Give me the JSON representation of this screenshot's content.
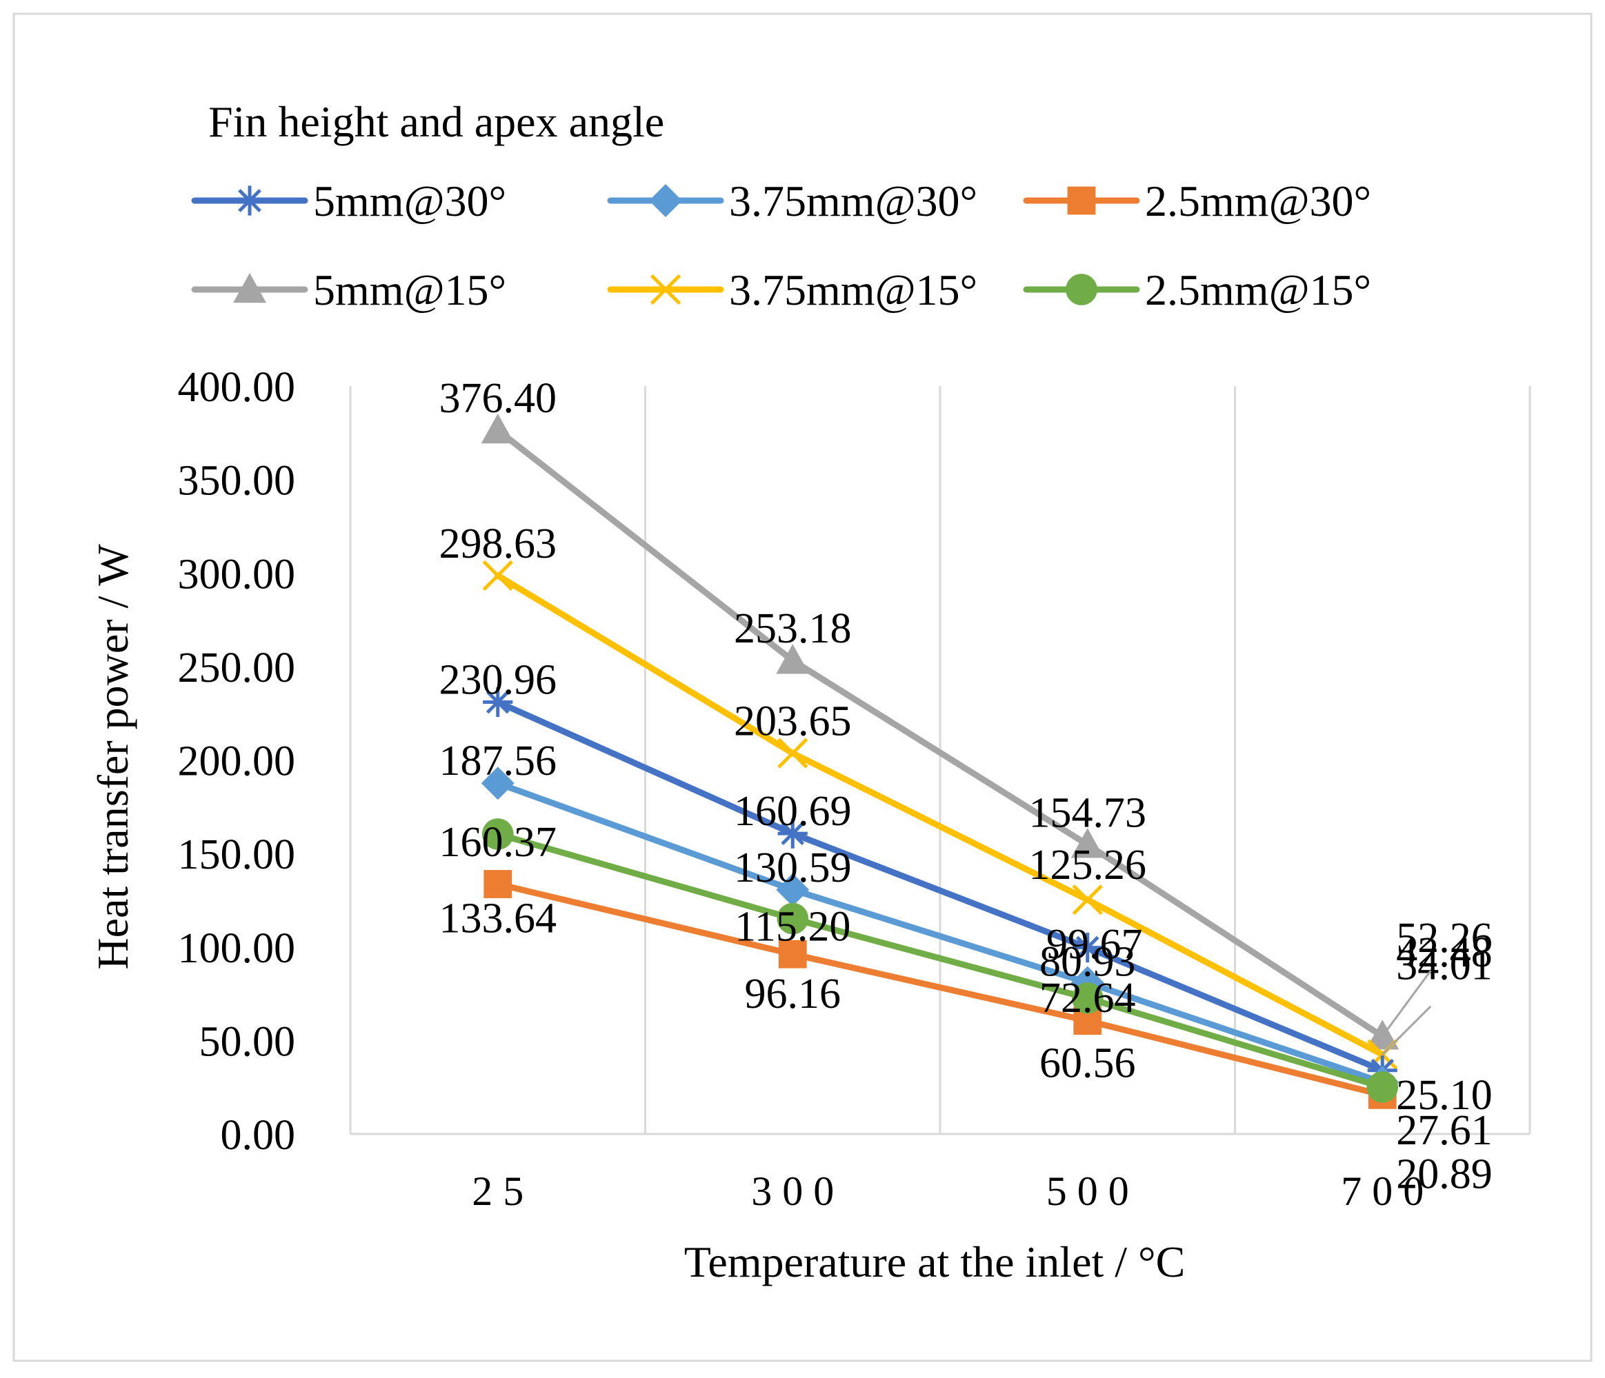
{
  "chart_data": {
    "type": "line",
    "title": "",
    "legend_title": "Fin height and apex angle",
    "legend_position": "top",
    "xlabel": "Temperature at the inlet / °C",
    "ylabel": "Heat transfer power / W",
    "categories": [
      "2 5",
      "3 0 0",
      "5 0 0",
      "7 0 0"
    ],
    "x_values": [
      25,
      300,
      500,
      700
    ],
    "ylim": [
      0,
      400
    ],
    "y_ticks": [
      "0.00",
      "50.00",
      "100.00",
      "150.00",
      "200.00",
      "250.00",
      "300.00",
      "350.00",
      "400.00"
    ],
    "grid": "vertical",
    "series": [
      {
        "name": "5mm@30°",
        "marker": "asterisk",
        "color": "#4472C4",
        "values": [
          230.96,
          160.69,
          99.67,
          34.01
        ],
        "labels": [
          "230.96",
          "160.69",
          "",
          "34.01"
        ]
      },
      {
        "name": "3.75mm@30°",
        "marker": "diamond",
        "color": "#5B9BD5",
        "values": [
          187.56,
          130.59,
          80.93,
          27.61
        ],
        "labels": [
          "187.56",
          "130.59",
          "80.93",
          "27.61"
        ]
      },
      {
        "name": "2.5mm@30°",
        "marker": "square",
        "color": "#ED7D31",
        "values": [
          133.64,
          96.16,
          60.56,
          20.89
        ],
        "labels": [
          "133.64",
          "96.16",
          "60.56",
          "20.89"
        ]
      },
      {
        "name": "5mm@15°",
        "marker": "triangle",
        "color": "#A5A5A5",
        "values": [
          376.4,
          253.18,
          154.73,
          52.26
        ],
        "labels": [
          "376.40",
          "253.18",
          "154.73",
          "52.26"
        ]
      },
      {
        "name": "3.75mm@15°",
        "marker": "x",
        "color": "#FFC000",
        "values": [
          298.63,
          203.65,
          125.26,
          42.48
        ],
        "labels": [
          "298.63",
          "203.65",
          "125.26",
          "42.48"
        ]
      },
      {
        "name": "2.5mm@15°",
        "marker": "circle",
        "color": "#70AD47",
        "values": [
          160.37,
          115.2,
          72.64,
          25.1
        ],
        "labels": [
          "160.37",
          "115.20",
          "72.64",
          "25.10"
        ]
      }
    ],
    "extra_labels": [
      "99.67"
    ]
  }
}
